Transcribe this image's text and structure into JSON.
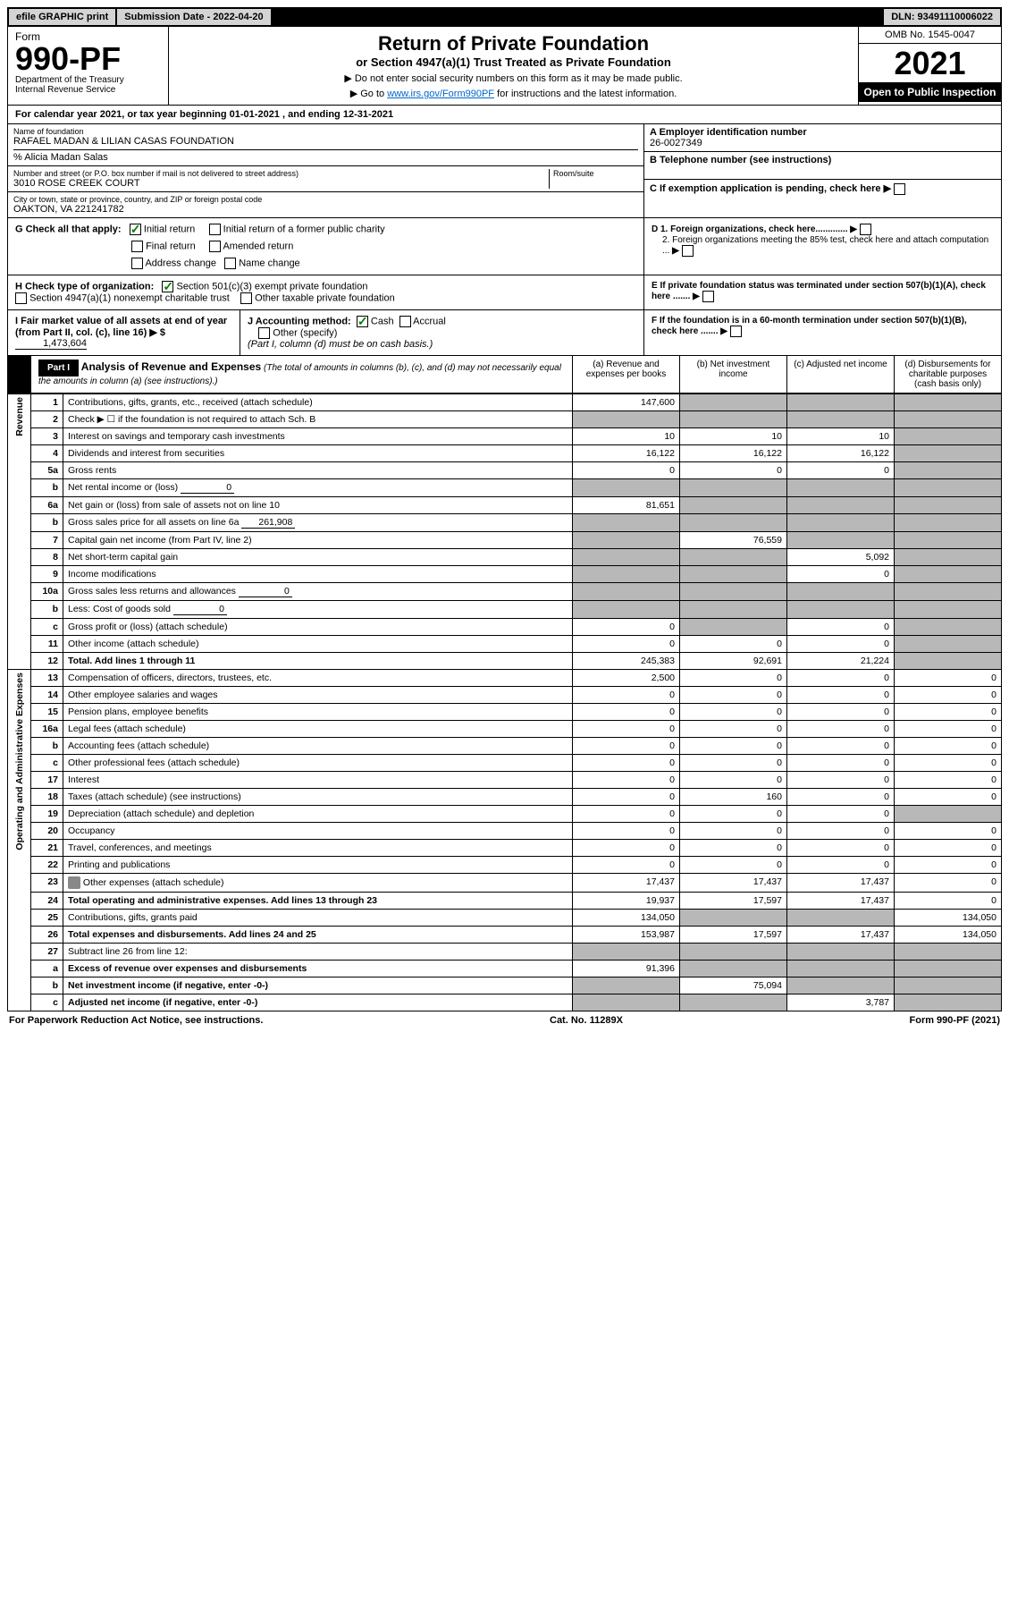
{
  "topbar": {
    "efile": "efile GRAPHIC print",
    "submission_label": "Submission Date - 2022-04-20",
    "dln": "DLN: 93491110006022"
  },
  "header": {
    "form_word": "Form",
    "form_number": "990-PF",
    "dept1": "Department of the Treasury",
    "dept2": "Internal Revenue Service",
    "title": "Return of Private Foundation",
    "subtitle": "or Section 4947(a)(1) Trust Treated as Private Foundation",
    "inst1": "▶ Do not enter social security numbers on this form as it may be made public.",
    "inst2_pre": "▶ Go to ",
    "inst2_link": "www.irs.gov/Form990PF",
    "inst2_post": " for instructions and the latest information.",
    "omb": "OMB No. 1545-0047",
    "year": "2021",
    "open": "Open to Public Inspection"
  },
  "cal_year": {
    "text_pre": "For calendar year 2021, or tax year beginning ",
    "begin": "01-01-2021",
    "text_mid": " , and ending ",
    "end": "12-31-2021"
  },
  "name_block": {
    "name_label": "Name of foundation",
    "name": "RAFAEL MADAN & LILIAN CASAS FOUNDATION",
    "care_of": "% Alicia Madan Salas",
    "addr_label": "Number and street (or P.O. box number if mail is not delivered to street address)",
    "addr": "3010 ROSE CREEK COURT",
    "room_label": "Room/suite",
    "city_label": "City or town, state or province, country, and ZIP or foreign postal code",
    "city": "OAKTON, VA  221241782",
    "a_label": "A Employer identification number",
    "ein": "26-0027349",
    "b_label": "B Telephone number (see instructions)",
    "c_label": "C If exemption application is pending, check here",
    "d1": "D 1. Foreign organizations, check here.............",
    "d2": "2. Foreign organizations meeting the 85% test, check here and attach computation ...",
    "e": "E  If private foundation status was terminated under section 507(b)(1)(A), check here .......",
    "f": "F  If the foundation is in a 60-month termination under section 507(b)(1)(B), check here .......",
    "g_label": "G Check all that apply:",
    "g_initial": "Initial return",
    "g_initial_former": "Initial return of a former public charity",
    "g_final": "Final return",
    "g_amended": "Amended return",
    "g_address": "Address change",
    "g_name": "Name change",
    "h_label": "H Check type of organization:",
    "h_501c3": "Section 501(c)(3) exempt private foundation",
    "h_4947": "Section 4947(a)(1) nonexempt charitable trust",
    "h_other": "Other taxable private foundation",
    "i_label": "I Fair market value of all assets at end of year (from Part II, col. (c), line 16)",
    "i_value": "1,473,604",
    "j_label": "J Accounting method:",
    "j_cash": "Cash",
    "j_accrual": "Accrual",
    "j_other": "Other (specify)",
    "j_note": "(Part I, column (d) must be on cash basis.)"
  },
  "part1": {
    "label": "Part I",
    "title": "Analysis of Revenue and Expenses",
    "title_note": "(The total of amounts in columns (b), (c), and (d) may not necessarily equal the amounts in column (a) (see instructions).)",
    "col_a": "(a) Revenue and expenses per books",
    "col_b": "(b) Net investment income",
    "col_c": "(c) Adjusted net income",
    "col_d": "(d) Disbursements for charitable purposes (cash basis only)"
  },
  "sections": {
    "revenue": "Revenue",
    "expenses": "Operating and Administrative Expenses"
  },
  "rows": [
    {
      "n": "1",
      "desc": "Contributions, gifts, grants, etc., received (attach schedule)",
      "a": "147,600",
      "b": "shaded",
      "c": "shaded",
      "d": "shaded"
    },
    {
      "n": "2",
      "desc": "Check ▶ ☐ if the foundation is not required to attach Sch. B",
      "a": "shaded",
      "b": "shaded",
      "c": "shaded",
      "d": "shaded",
      "bold_not": true
    },
    {
      "n": "3",
      "desc": "Interest on savings and temporary cash investments",
      "a": "10",
      "b": "10",
      "c": "10",
      "d": "shaded"
    },
    {
      "n": "4",
      "desc": "Dividends and interest from securities",
      "a": "16,122",
      "b": "16,122",
      "c": "16,122",
      "d": "shaded"
    },
    {
      "n": "5a",
      "desc": "Gross rents",
      "a": "0",
      "b": "0",
      "c": "0",
      "d": "shaded"
    },
    {
      "n": "b",
      "desc": "Net rental income or (loss)",
      "inline": "0",
      "a": "shaded",
      "b": "shaded",
      "c": "shaded",
      "d": "shaded"
    },
    {
      "n": "6a",
      "desc": "Net gain or (loss) from sale of assets not on line 10",
      "a": "81,651",
      "b": "shaded",
      "c": "shaded",
      "d": "shaded"
    },
    {
      "n": "b",
      "desc": "Gross sales price for all assets on line 6a",
      "inline": "261,908",
      "a": "shaded",
      "b": "shaded",
      "c": "shaded",
      "d": "shaded"
    },
    {
      "n": "7",
      "desc": "Capital gain net income (from Part IV, line 2)",
      "a": "shaded",
      "b": "76,559",
      "c": "shaded",
      "d": "shaded"
    },
    {
      "n": "8",
      "desc": "Net short-term capital gain",
      "a": "shaded",
      "b": "shaded",
      "c": "5,092",
      "d": "shaded"
    },
    {
      "n": "9",
      "desc": "Income modifications",
      "a": "shaded",
      "b": "shaded",
      "c": "0",
      "d": "shaded"
    },
    {
      "n": "10a",
      "desc": "Gross sales less returns and allowances",
      "inline": "0",
      "a": "shaded",
      "b": "shaded",
      "c": "shaded",
      "d": "shaded"
    },
    {
      "n": "b",
      "desc": "Less: Cost of goods sold",
      "inline": "0",
      "a": "shaded",
      "b": "shaded",
      "c": "shaded",
      "d": "shaded"
    },
    {
      "n": "c",
      "desc": "Gross profit or (loss) (attach schedule)",
      "a": "0",
      "b": "shaded",
      "c": "0",
      "d": "shaded"
    },
    {
      "n": "11",
      "desc": "Other income (attach schedule)",
      "a": "0",
      "b": "0",
      "c": "0",
      "d": "shaded"
    },
    {
      "n": "12",
      "desc": "Total. Add lines 1 through 11",
      "a": "245,383",
      "b": "92,691",
      "c": "21,224",
      "d": "shaded",
      "bold": true
    }
  ],
  "exp_rows": [
    {
      "n": "13",
      "desc": "Compensation of officers, directors, trustees, etc.",
      "a": "2,500",
      "b": "0",
      "c": "0",
      "d": "0"
    },
    {
      "n": "14",
      "desc": "Other employee salaries and wages",
      "a": "0",
      "b": "0",
      "c": "0",
      "d": "0"
    },
    {
      "n": "15",
      "desc": "Pension plans, employee benefits",
      "a": "0",
      "b": "0",
      "c": "0",
      "d": "0"
    },
    {
      "n": "16a",
      "desc": "Legal fees (attach schedule)",
      "a": "0",
      "b": "0",
      "c": "0",
      "d": "0"
    },
    {
      "n": "b",
      "desc": "Accounting fees (attach schedule)",
      "a": "0",
      "b": "0",
      "c": "0",
      "d": "0"
    },
    {
      "n": "c",
      "desc": "Other professional fees (attach schedule)",
      "a": "0",
      "b": "0",
      "c": "0",
      "d": "0"
    },
    {
      "n": "17",
      "desc": "Interest",
      "a": "0",
      "b": "0",
      "c": "0",
      "d": "0"
    },
    {
      "n": "18",
      "desc": "Taxes (attach schedule) (see instructions)",
      "a": "0",
      "b": "160",
      "c": "0",
      "d": "0"
    },
    {
      "n": "19",
      "desc": "Depreciation (attach schedule) and depletion",
      "a": "0",
      "b": "0",
      "c": "0",
      "d": "shaded"
    },
    {
      "n": "20",
      "desc": "Occupancy",
      "a": "0",
      "b": "0",
      "c": "0",
      "d": "0"
    },
    {
      "n": "21",
      "desc": "Travel, conferences, and meetings",
      "a": "0",
      "b": "0",
      "c": "0",
      "d": "0"
    },
    {
      "n": "22",
      "desc": "Printing and publications",
      "a": "0",
      "b": "0",
      "c": "0",
      "d": "0"
    },
    {
      "n": "23",
      "desc": "Other expenses (attach schedule)",
      "a": "17,437",
      "b": "17,437",
      "c": "17,437",
      "d": "0",
      "icon": true
    },
    {
      "n": "24",
      "desc": "Total operating and administrative expenses. Add lines 13 through 23",
      "a": "19,937",
      "b": "17,597",
      "c": "17,437",
      "d": "0",
      "bold": true,
      "twoline": true
    },
    {
      "n": "25",
      "desc": "Contributions, gifts, grants paid",
      "a": "134,050",
      "b": "shaded",
      "c": "shaded",
      "d": "134,050"
    },
    {
      "n": "26",
      "desc": "Total expenses and disbursements. Add lines 24 and 25",
      "a": "153,987",
      "b": "17,597",
      "c": "17,437",
      "d": "134,050",
      "bold": true,
      "twoline": true
    },
    {
      "n": "27",
      "desc": "Subtract line 26 from line 12:",
      "a": "shaded",
      "b": "shaded",
      "c": "shaded",
      "d": "shaded"
    },
    {
      "n": "a",
      "desc": "Excess of revenue over expenses and disbursements",
      "a": "91,396",
      "b": "shaded",
      "c": "shaded",
      "d": "shaded",
      "bold": true
    },
    {
      "n": "b",
      "desc": "Net investment income (if negative, enter -0-)",
      "a": "shaded",
      "b": "75,094",
      "c": "shaded",
      "d": "shaded",
      "bold": true
    },
    {
      "n": "c",
      "desc": "Adjusted net income (if negative, enter -0-)",
      "a": "shaded",
      "b": "shaded",
      "c": "3,787",
      "d": "shaded",
      "bold": true
    }
  ],
  "footer": {
    "left": "For Paperwork Reduction Act Notice, see instructions.",
    "mid": "Cat. No. 11289X",
    "right": "Form 990-PF (2021)"
  }
}
